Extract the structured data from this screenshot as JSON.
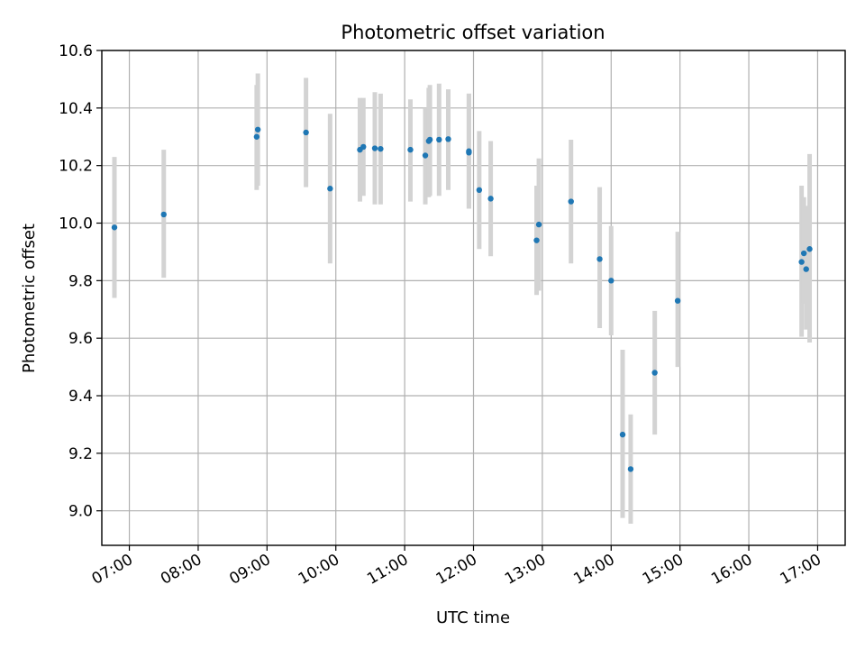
{
  "chart_data": {
    "type": "scatter",
    "title": "Photometric offset variation",
    "xlabel": "UTC time",
    "ylabel": "Photometric offset",
    "xlim": [
      "06:36",
      "17:24"
    ],
    "ylim": [
      8.88,
      10.6
    ],
    "x_ticks": [
      "07:00",
      "08:00",
      "09:00",
      "10:00",
      "11:00",
      "12:00",
      "13:00",
      "14:00",
      "15:00",
      "16:00",
      "17:00"
    ],
    "y_ticks": [
      "9.0",
      "9.2",
      "9.4",
      "9.6",
      "9.8",
      "10.0",
      "10.2",
      "10.4",
      "10.6"
    ],
    "grid": true,
    "colors": {
      "points": "#1f77b4",
      "errorbars": "#d3d3d3"
    },
    "points": [
      {
        "x": "06:47",
        "y": 9.985,
        "lo": 9.74,
        "hi": 10.23
      },
      {
        "x": "07:30",
        "y": 10.03,
        "lo": 9.81,
        "hi": 10.255
      },
      {
        "x": "08:51",
        "y": 10.3,
        "lo": 10.115,
        "hi": 10.48
      },
      {
        "x": "08:52",
        "y": 10.325,
        "lo": 10.13,
        "hi": 10.52
      },
      {
        "x": "09:34",
        "y": 10.315,
        "lo": 10.125,
        "hi": 10.505
      },
      {
        "x": "09:55",
        "y": 10.12,
        "lo": 9.86,
        "hi": 10.38
      },
      {
        "x": "10:21",
        "y": 10.255,
        "lo": 10.075,
        "hi": 10.435
      },
      {
        "x": "10:24",
        "y": 10.265,
        "lo": 10.095,
        "hi": 10.435
      },
      {
        "x": "10:34",
        "y": 10.26,
        "lo": 10.065,
        "hi": 10.455
      },
      {
        "x": "10:39",
        "y": 10.258,
        "lo": 10.065,
        "hi": 10.45
      },
      {
        "x": "11:05",
        "y": 10.255,
        "lo": 10.075,
        "hi": 10.43
      },
      {
        "x": "11:18",
        "y": 10.235,
        "lo": 10.065,
        "hi": 10.4
      },
      {
        "x": "11:22",
        "y": 10.29,
        "lo": 10.095,
        "hi": 10.48
      },
      {
        "x": "11:21",
        "y": 10.285,
        "lo": 10.09,
        "hi": 10.47
      },
      {
        "x": "11:30",
        "y": 10.29,
        "lo": 10.095,
        "hi": 10.485
      },
      {
        "x": "11:38",
        "y": 10.292,
        "lo": 10.115,
        "hi": 10.465
      },
      {
        "x": "11:56",
        "y": 10.245,
        "lo": 10.05,
        "hi": 10.45
      },
      {
        "x": "11:56",
        "y": 10.25,
        "lo": 10.05,
        "hi": 10.45
      },
      {
        "x": "12:05",
        "y": 10.115,
        "lo": 9.91,
        "hi": 10.32
      },
      {
        "x": "12:15",
        "y": 10.085,
        "lo": 9.885,
        "hi": 10.285
      },
      {
        "x": "12:55",
        "y": 9.94,
        "lo": 9.75,
        "hi": 10.13
      },
      {
        "x": "12:57",
        "y": 9.995,
        "lo": 9.765,
        "hi": 10.225
      },
      {
        "x": "13:25",
        "y": 10.075,
        "lo": 9.86,
        "hi": 10.29
      },
      {
        "x": "13:50",
        "y": 9.875,
        "lo": 9.635,
        "hi": 10.125
      },
      {
        "x": "14:00",
        "y": 9.8,
        "lo": 9.61,
        "hi": 9.99
      },
      {
        "x": "14:10",
        "y": 9.265,
        "lo": 8.975,
        "hi": 9.56
      },
      {
        "x": "14:17",
        "y": 9.145,
        "lo": 8.955,
        "hi": 9.335
      },
      {
        "x": "14:38",
        "y": 9.48,
        "lo": 9.265,
        "hi": 9.695
      },
      {
        "x": "14:58",
        "y": 9.73,
        "lo": 9.5,
        "hi": 9.97
      },
      {
        "x": "16:46",
        "y": 9.865,
        "lo": 9.605,
        "hi": 10.13
      },
      {
        "x": "16:48",
        "y": 9.895,
        "lo": 9.72,
        "hi": 10.09
      },
      {
        "x": "16:50",
        "y": 9.84,
        "lo": 9.63,
        "hi": 10.06
      },
      {
        "x": "16:53",
        "y": 9.91,
        "lo": 9.585,
        "hi": 10.24
      }
    ]
  }
}
